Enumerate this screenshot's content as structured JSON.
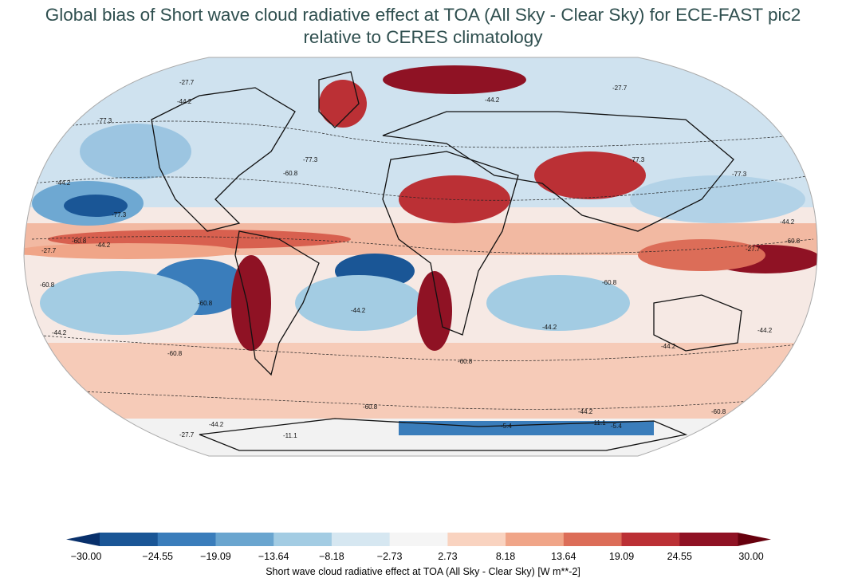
{
  "title_line1": "Global bias of Short wave cloud radiative effect at TOA (All Sky - Clear Sky) for ECE-FAST pic2",
  "title_line2": "relative to CERES climatology",
  "colorbar": {
    "label": "Short wave cloud radiative effect at TOA (All Sky - Clear Sky) [W m**-2]",
    "ticks": [
      "−30.00",
      "−24.55",
      "−19.09",
      "−13.64",
      "−8.18",
      "−2.73",
      "2.73",
      "8.18",
      "13.64",
      "19.09",
      "24.55",
      "30.00"
    ],
    "colors": [
      "#1a5696",
      "#3a7dbb",
      "#6aa5cf",
      "#a3cce3",
      "#d6e7f1",
      "#f5f5f5",
      "#f9d3c0",
      "#f0a588",
      "#dc6d58",
      "#bb3035",
      "#8f1224"
    ],
    "min": -30,
    "max": 30,
    "extend": "both"
  },
  "contour_labels": [
    "-27.7",
    "-44.2",
    "-77.3",
    "-60.8",
    "-11.1",
    "-5.4"
  ],
  "map": {
    "projection": "Robinson",
    "fill_colors": {
      "ocean_blue_strong": "#2c6aa8",
      "ocean_blue": "#6ea8d2",
      "light_blue": "#b9d7ea",
      "light_red": "#f7c6b1",
      "red": "#d8604f",
      "dark_red": "#8f1224"
    }
  }
}
